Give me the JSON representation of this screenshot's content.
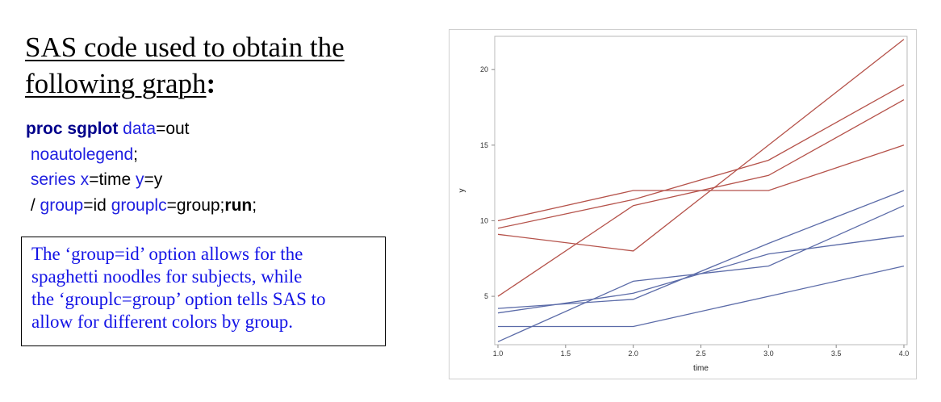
{
  "title": {
    "line1": "SAS code used to obtain the",
    "line2": "following graph",
    "colon": ":"
  },
  "code": {
    "l1_kw": "proc sgplot",
    "l1_opt": " data",
    "l1_rest": "=out",
    "l2_opt": " noautolegend",
    "l2_rest": ";",
    "l3_opt1": " series x",
    "l3_mid": "=time ",
    "l3_opt2": "y",
    "l3_rest": "=y",
    "l4_pre": " / ",
    "l4_opt1": "group",
    "l4_mid": "=id ",
    "l4_opt2": "grouplc",
    "l4_rest": "=group;",
    "l4_run": "run",
    "l4_end": ";"
  },
  "note": {
    "line1": "The ‘group=id’ option allows for the",
    "line2": "spaghetti noodles for subjects, while",
    "line3": "the ‘grouplc=group’ option tells SAS to",
    "line4": "allow for different colors by group."
  },
  "chart_data": {
    "type": "line",
    "xlabel": "time",
    "ylabel": "y",
    "xlim": [
      1.0,
      4.0
    ],
    "ylim": [
      1.8,
      22.2
    ],
    "xticks": [
      "1.0",
      "1.5",
      "2.0",
      "2.5",
      "3.0",
      "3.5",
      "4.0"
    ],
    "yticks": [
      "5",
      "10",
      "15",
      "20"
    ],
    "grid": false,
    "legend": "none",
    "colors": {
      "group1": "#b5524a",
      "group2": "#5b6ba8"
    },
    "x": [
      1,
      2,
      3,
      4
    ],
    "series": [
      {
        "group": 1,
        "values": [
          10,
          12,
          12,
          15
        ]
      },
      {
        "group": 1,
        "values": [
          9.5,
          11.4,
          14,
          19
        ]
      },
      {
        "group": 1,
        "values": [
          9.1,
          8,
          15,
          22
        ]
      },
      {
        "group": 1,
        "values": [
          5,
          11,
          13,
          18
        ]
      },
      {
        "group": 2,
        "values": [
          4.2,
          4.8,
          8.5,
          12
        ]
      },
      {
        "group": 2,
        "values": [
          3.9,
          5.2,
          7.8,
          9
        ]
      },
      {
        "group": 2,
        "values": [
          2,
          6,
          7,
          11
        ]
      },
      {
        "group": 2,
        "values": [
          3,
          3,
          5,
          7
        ]
      }
    ]
  }
}
